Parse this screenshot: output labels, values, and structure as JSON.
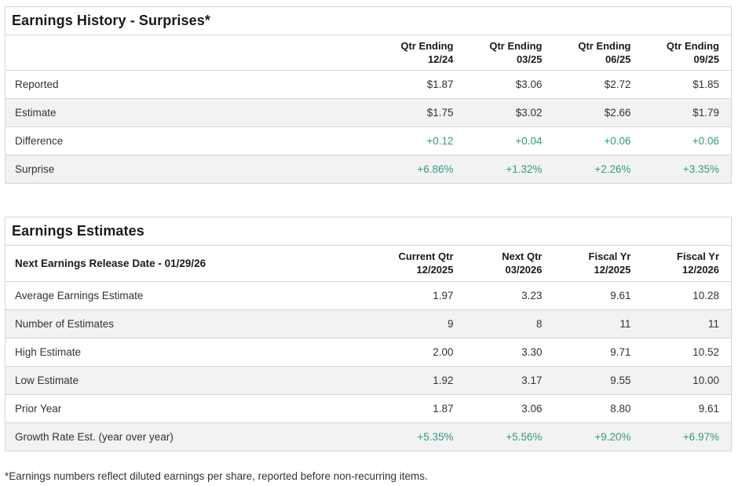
{
  "colors": {
    "positive": "#2e9c85",
    "border": "#d5d5d5",
    "row_alt": "#f2f2f2",
    "text": "#333333",
    "heading": "#1a1a1a"
  },
  "earnings_history": {
    "title": "Earnings History - Surprises*",
    "columns": [
      {
        "line1": "Qtr Ending",
        "line2": "12/24"
      },
      {
        "line1": "Qtr Ending",
        "line2": "03/25"
      },
      {
        "line1": "Qtr Ending",
        "line2": "06/25"
      },
      {
        "line1": "Qtr Ending",
        "line2": "09/25"
      }
    ],
    "rows": [
      {
        "label": "Reported",
        "values": [
          "$1.87",
          "$3.06",
          "$2.72",
          "$1.85"
        ]
      },
      {
        "label": "Estimate",
        "values": [
          "$1.75",
          "$3.02",
          "$2.66",
          "$1.79"
        ]
      },
      {
        "label": "Difference",
        "values": [
          "+0.12",
          "+0.04",
          "+0.06",
          "+0.06"
        ]
      },
      {
        "label": "Surprise",
        "values": [
          "+6.86%",
          "+1.32%",
          "+2.26%",
          "+3.35%"
        ]
      }
    ]
  },
  "earnings_estimates": {
    "title": "Earnings Estimates",
    "header_label": "Next Earnings Release Date - 01/29/26",
    "columns": [
      {
        "line1": "Current Qtr",
        "line2": "12/2025"
      },
      {
        "line1": "Next Qtr",
        "line2": "03/2026"
      },
      {
        "line1": "Fiscal Yr",
        "line2": "12/2025"
      },
      {
        "line1": "Fiscal Yr",
        "line2": "12/2026"
      }
    ],
    "rows": [
      {
        "label": "Average Earnings Estimate",
        "values": [
          "1.97",
          "3.23",
          "9.61",
          "10.28"
        ]
      },
      {
        "label": "Number of Estimates",
        "values": [
          "9",
          "8",
          "11",
          "11"
        ]
      },
      {
        "label": "High Estimate",
        "values": [
          "2.00",
          "3.30",
          "9.71",
          "10.52"
        ]
      },
      {
        "label": "Low Estimate",
        "values": [
          "1.92",
          "3.17",
          "9.55",
          "10.00"
        ]
      },
      {
        "label": "Prior Year",
        "values": [
          "1.87",
          "3.06",
          "8.80",
          "9.61"
        ]
      },
      {
        "label": "Growth Rate Est. (year over year)",
        "values": [
          "+5.35%",
          "+5.56%",
          "+9.20%",
          "+6.97%"
        ]
      }
    ]
  },
  "footnote": "*Earnings numbers reflect diluted earnings per share, reported before non-recurring items."
}
